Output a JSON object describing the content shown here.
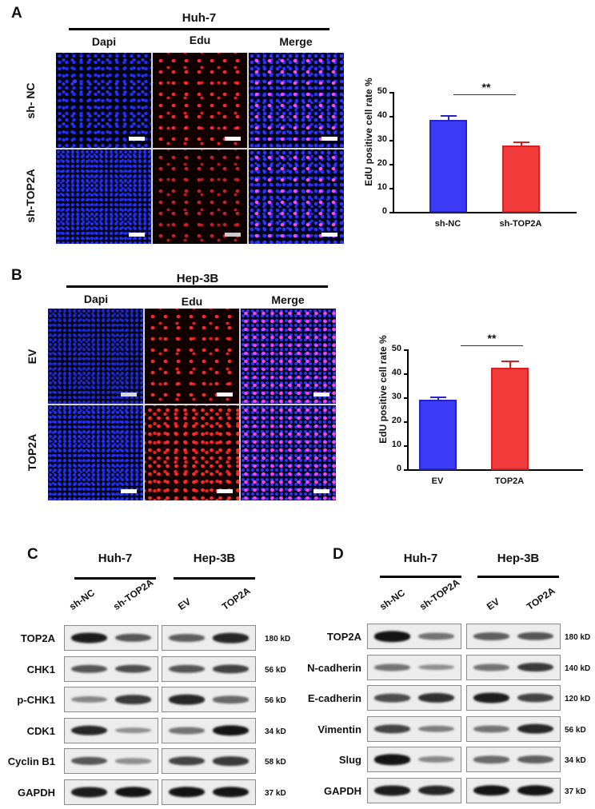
{
  "panelA": {
    "letter": "A",
    "cell_line": "Huh-7",
    "columns": [
      "Dapi",
      "Edu",
      "Merge"
    ],
    "rows": [
      "sh- NC",
      "sh-TOP2A"
    ]
  },
  "panelB": {
    "letter": "B",
    "cell_line": "Hep-3B",
    "columns": [
      "Dapi",
      "Edu",
      "Merge"
    ],
    "rows": [
      "EV",
      "TOP2A"
    ]
  },
  "chartA": {
    "ylabel": "EdU positive cell rate %",
    "yticks": [
      "0",
      "10",
      "20",
      "30",
      "40",
      "50"
    ],
    "categories": [
      "sh-NC",
      "sh-TOP2A"
    ],
    "significance": "**"
  },
  "chartB": {
    "ylabel": "EdU positive cell rate %",
    "yticks": [
      "0",
      "10",
      "20",
      "30",
      "40",
      "50"
    ],
    "categories": [
      "EV",
      "TOP2A"
    ],
    "significance": "**"
  },
  "chart_data": [
    {
      "type": "bar",
      "title": "Huh-7 EdU",
      "categories": [
        "sh-NC",
        "sh-TOP2A"
      ],
      "values": [
        38.2,
        27.6
      ],
      "errors": [
        2.0,
        1.8
      ],
      "colors": [
        "#3a3af0",
        "#f03c3c"
      ],
      "xlabel": "",
      "ylabel": "EdU positive cell rate %",
      "ylim": [
        0,
        50
      ],
      "yticks": [
        0,
        10,
        20,
        30,
        40,
        50
      ],
      "annotations": [
        {
          "text": "**",
          "between": [
            "sh-NC",
            "sh-TOP2A"
          ]
        }
      ],
      "grid": false,
      "legend": "none"
    },
    {
      "type": "bar",
      "title": "Hep-3B EdU",
      "categories": [
        "EV",
        "TOP2A"
      ],
      "values": [
        29.2,
        42.3
      ],
      "errors": [
        1.3,
        3.0
      ],
      "colors": [
        "#3a3af0",
        "#f03c3c"
      ],
      "xlabel": "",
      "ylabel": "EdU positive cell rate %",
      "ylim": [
        0,
        50
      ],
      "yticks": [
        0,
        10,
        20,
        30,
        40,
        50
      ],
      "annotations": [
        {
          "text": "**",
          "between": [
            "EV",
            "TOP2A"
          ]
        }
      ],
      "grid": false,
      "legend": "none"
    }
  ],
  "panelC": {
    "letter": "C",
    "groups": [
      "Huh-7",
      "Hep-3B"
    ],
    "lanes": [
      "sh-NC",
      "sh-TOP2A",
      "EV",
      "TOP2A"
    ],
    "proteins": [
      {
        "name": "TOP2A",
        "kd": "180 kD"
      },
      {
        "name": "CHK1",
        "kd": "56 kD"
      },
      {
        "name": "p-CHK1",
        "kd": "56 kD"
      },
      {
        "name": "CDK1",
        "kd": "34 kD"
      },
      {
        "name": "Cyclin B1",
        "kd": "58 kD"
      },
      {
        "name": "GAPDH",
        "kd": "37 kD"
      }
    ]
  },
  "panelD": {
    "letter": "D",
    "groups": [
      "Huh-7",
      "Hep-3B"
    ],
    "lanes": [
      "sh-NC",
      "sh-TOP2A",
      "EV",
      "TOP2A"
    ],
    "proteins": [
      {
        "name": "TOP2A",
        "kd": "180 kD"
      },
      {
        "name": "N-cadherin",
        "kd": "140 kD"
      },
      {
        "name": "E-cadherin",
        "kd": "120 kD"
      },
      {
        "name": "Vimentin",
        "kd": "56 kD"
      },
      {
        "name": "Slug",
        "kd": "34 kD"
      },
      {
        "name": "GAPDH",
        "kd": "37 kD"
      }
    ]
  }
}
